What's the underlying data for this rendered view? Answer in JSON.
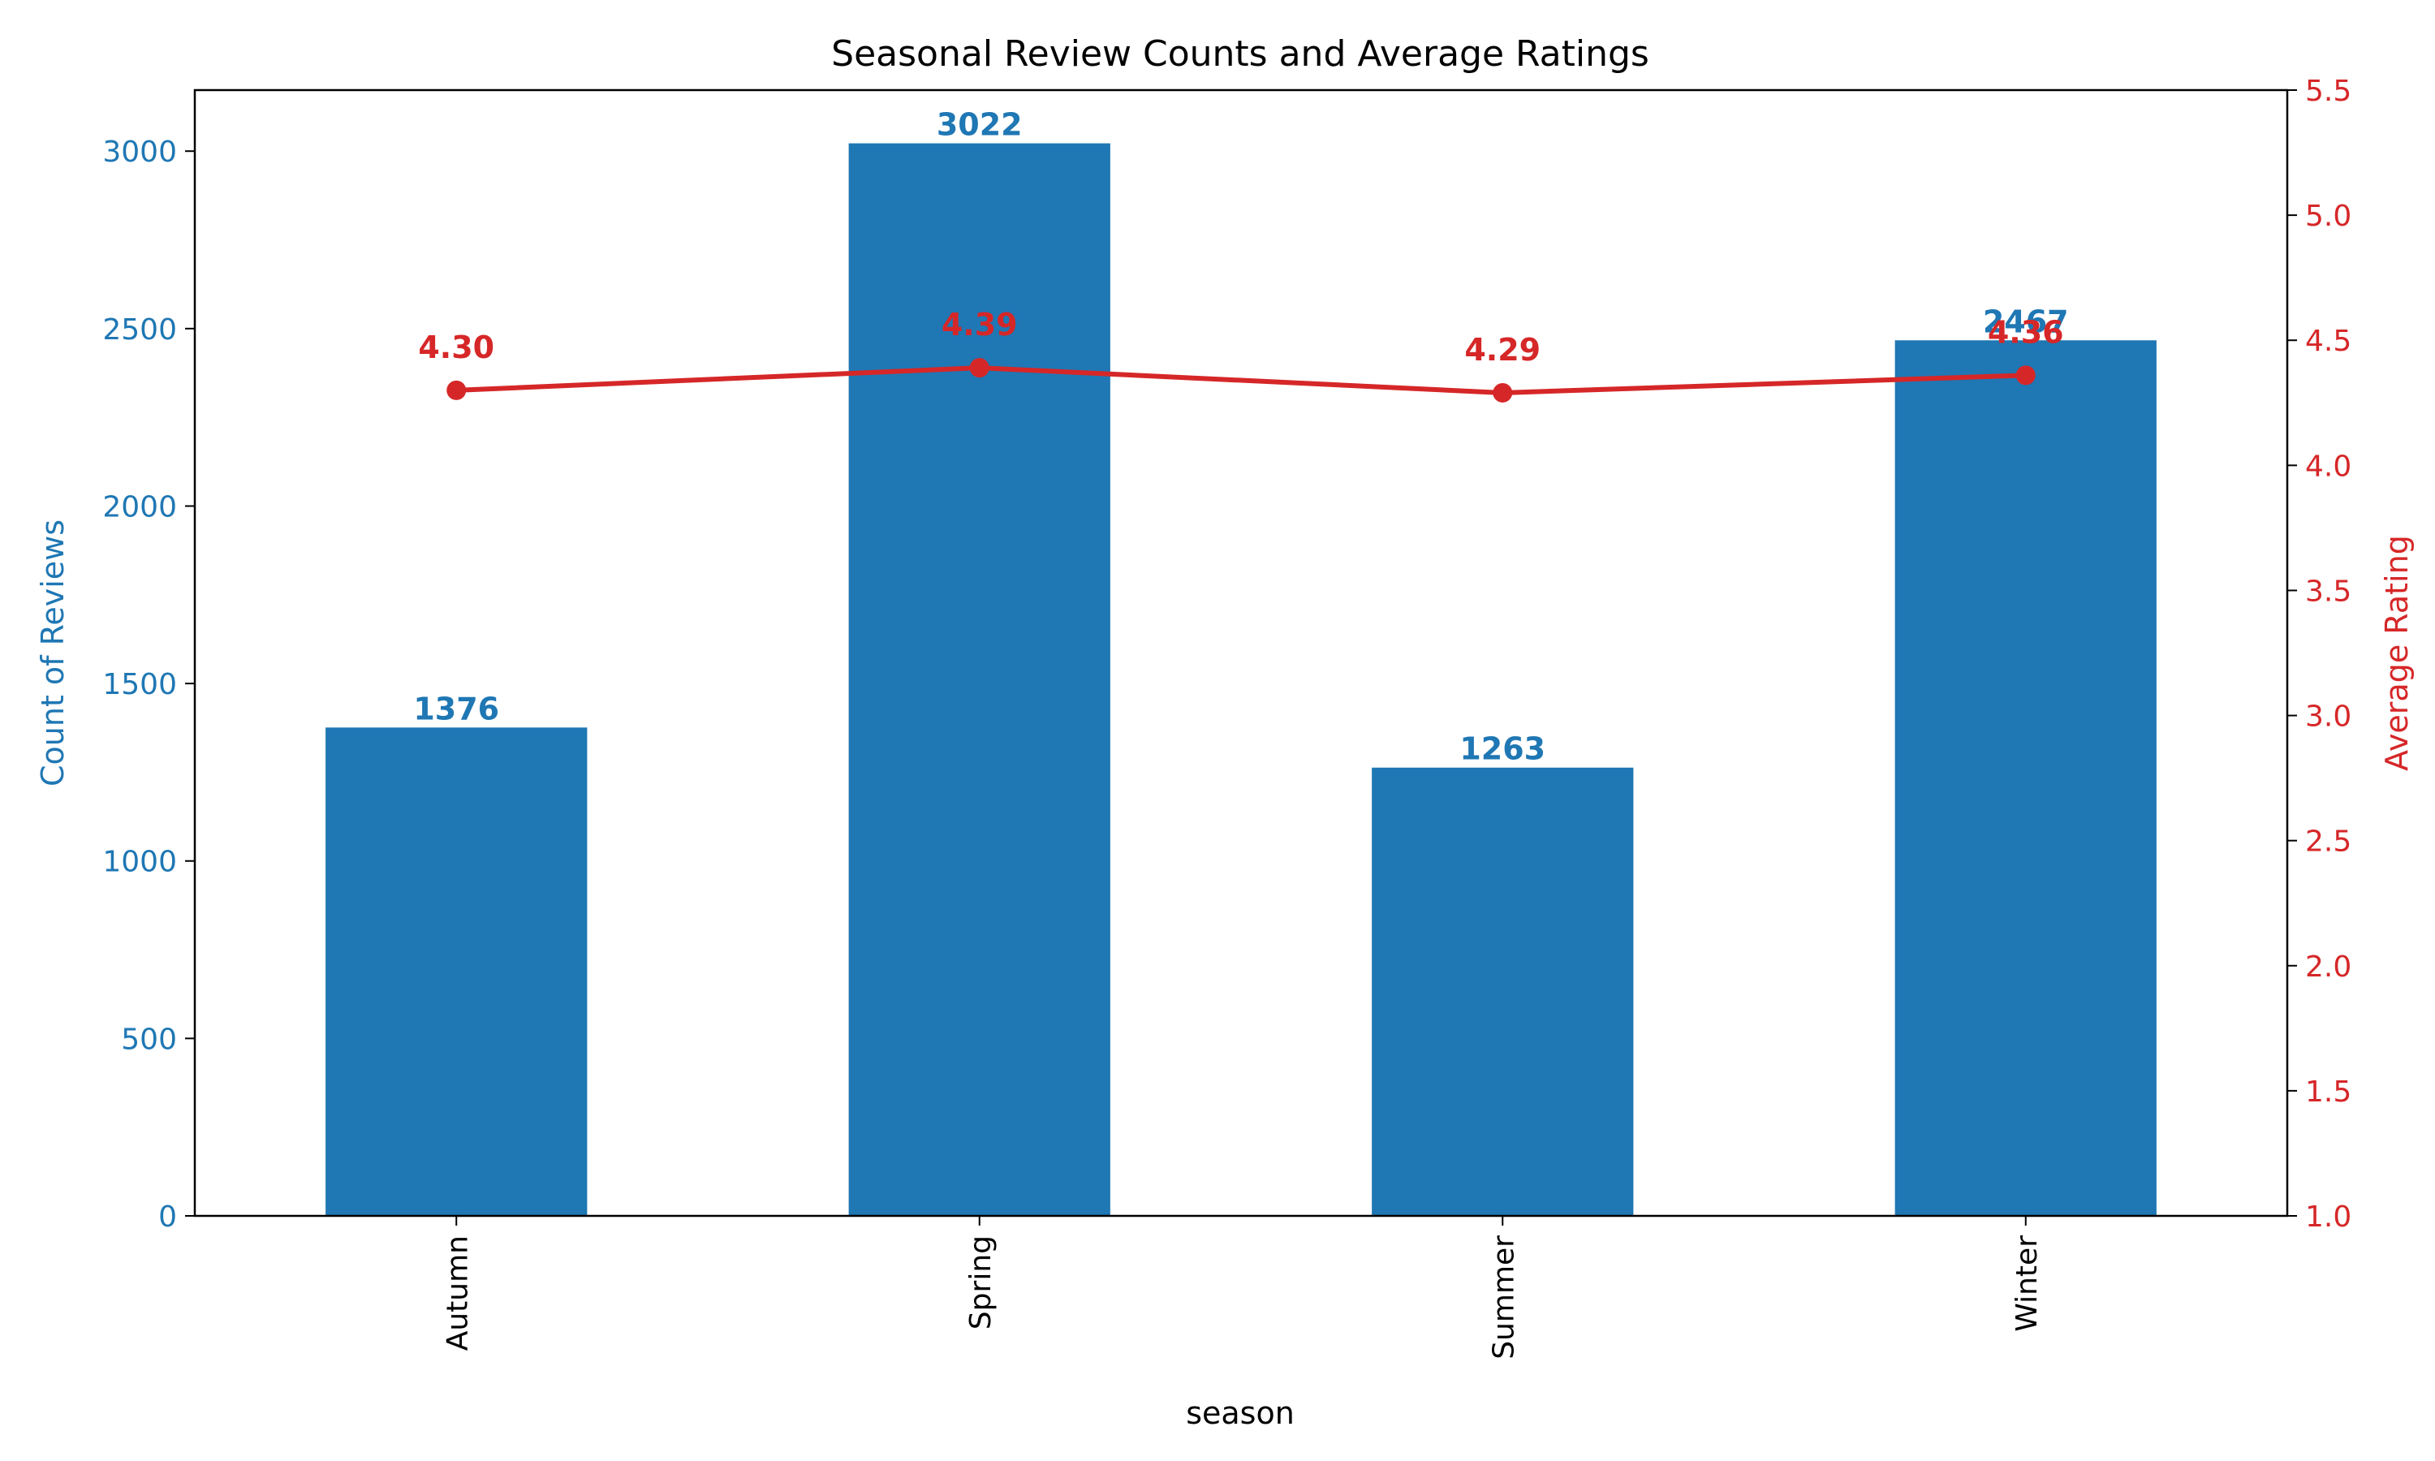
{
  "chart_data": {
    "type": "bar",
    "title": "Seasonal Review Counts and Average Ratings",
    "xlabel": "season",
    "categories": [
      "Autumn",
      "Spring",
      "Summer",
      "Winter"
    ],
    "series": [
      {
        "type": "bar",
        "axis": "left",
        "values": [
          1376,
          3022,
          1263,
          2467
        ],
        "value_labels": [
          "1376",
          "3022",
          "1263",
          "2467"
        ],
        "color": "#1f77b4"
      },
      {
        "type": "line",
        "axis": "right",
        "values": [
          4.3,
          4.39,
          4.29,
          4.36
        ],
        "value_labels": [
          "4.30",
          "4.39",
          "4.29",
          "4.36"
        ],
        "color": "#d62728"
      }
    ],
    "y_left": {
      "label": "Count of Reviews",
      "ylim": [
        0,
        3172
      ],
      "ticks": [
        0,
        500,
        1000,
        1500,
        2000,
        2500,
        3000
      ],
      "tick_labels": [
        "0",
        "500",
        "1000",
        "1500",
        "2000",
        "2500",
        "3000"
      ],
      "color": "#1f77b4"
    },
    "y_right": {
      "label": "Average Rating",
      "ylim": [
        1.0,
        5.5
      ],
      "ticks": [
        1.0,
        1.5,
        2.0,
        2.5,
        3.0,
        3.5,
        4.0,
        4.5,
        5.0,
        5.5
      ],
      "tick_labels": [
        "1.0",
        "1.5",
        "2.0",
        "2.5",
        "3.0",
        "3.5",
        "4.0",
        "4.5",
        "5.0",
        "5.5"
      ],
      "color": "#d62728"
    },
    "grid": false,
    "legend": "none"
  }
}
